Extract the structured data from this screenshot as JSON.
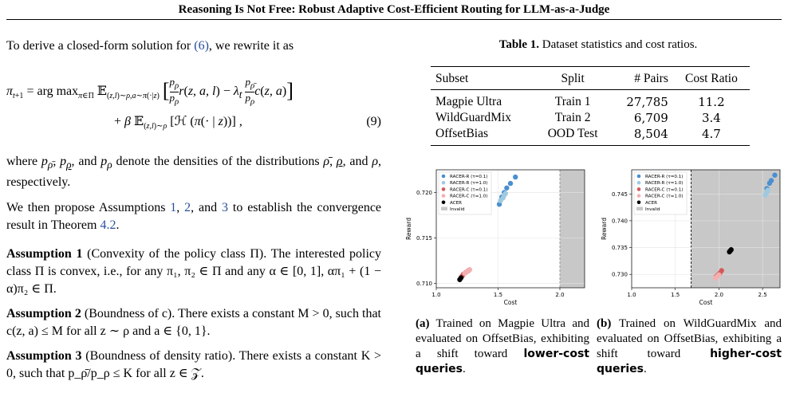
{
  "header": {
    "title": "Reasoning Is Not Free: Robust Adaptive Cost-Efficient Routing for LLM-as-a-Judge"
  },
  "left": {
    "intro": "To derive a closed-form solution for",
    "intro_ref": "(6)",
    "intro_tail": ", we rewrite it as",
    "eq_line1": "π_{t+1} = arg max_{π∈Π} 𝔼_{(z,l)∼ρ, a∼π(·|z)} [ (p_ρ / p_ρ) r(z,a,l) − λ_t (p_ρ̄ / p_ρ) c(z,a) ]",
    "eq_line2": "+ β 𝔼_{(z,l)∼ρ} [ℋ (π(· | z))],",
    "eq_number": "(9)",
    "densities_p1": "where",
    "densities_p2": "and",
    "densities_p3": "denote the densities of the distributions",
    "densities_p4": "respectively.",
    "assume_intro_a": "We then propose Assumptions",
    "assume_ref1": "1",
    "assume_ref2": "2",
    "assume_ref3": "3",
    "assume_intro_b": "to establish the convergence result in Theorem",
    "theorem_ref": "4.2",
    "a1_title": "Assumption 1",
    "a1_paren": "(Convexity of the policy class Π).",
    "a1_body": "The interested policy class Π is convex, i.e., for any π₁, π₂ ∈ Π and any α ∈ [0, 1], απ₁ + (1 − α)π₂ ∈ Π.",
    "a2_title": "Assumption 2",
    "a2_paren": "(Boundness of c).",
    "a2_body": "There exists a constant M > 0, such that c(z, a) ≤ M for all z ∼ ρ and a ∈ {0, 1}.",
    "a3_title": "Assumption 3",
    "a3_paren": "(Boundness of density ratio).",
    "a3_body": "There exists a constant K > 0, such that p_ρ̄/p_ρ ≤ K for all z ∈ 𝒵."
  },
  "table": {
    "caption_label": "Table 1.",
    "caption_text": "Dataset statistics and cost ratios.",
    "columns": [
      "Subset",
      "Split",
      "# Pairs",
      "Cost Ratio"
    ],
    "rows": [
      [
        "Magpie Ultra",
        "Train 1",
        "27,785",
        "11.2"
      ],
      [
        "WildGuardMix",
        "Train 2",
        "6,709",
        "3.4"
      ],
      [
        "OffsetBias",
        "OOD Test",
        "8,504",
        "4.7"
      ]
    ]
  },
  "legend": {
    "entries": [
      "RACER-R (τ=0.1)",
      "RACER-R (τ=1.0)",
      "RACER-C (τ=0.1)",
      "RACER-C (τ=1.0)",
      "ACER",
      "Invalid"
    ],
    "colors": [
      "#4a8fd0",
      "#9ecae1",
      "#d6575a",
      "#f4b0b0",
      "#000000",
      "#c8c8c8"
    ]
  },
  "captions": {
    "a_label": "(a)",
    "a_text1": "Trained on Magpie Ultra and evaluated on OffsetBias, exhibiting a shift toward",
    "a_bold": "lower-cost queries",
    "b_label": "(b)",
    "b_text1": "Trained on WildGuardMix and evaluated on OffsetBias, exhibiting a shift toward",
    "b_bold": "higher-cost queries",
    "end": "."
  },
  "chart_data": [
    {
      "type": "scatter",
      "xlabel": "Cost",
      "ylabel": "Reward",
      "xlim": [
        1.0,
        2.2
      ],
      "ylim": [
        0.7095,
        0.7225
      ],
      "xticks": [
        "1.0",
        "1.5",
        "2.0"
      ],
      "xtick_values": [
        1.0,
        1.5,
        2.0
      ],
      "yticks": [
        "0.710",
        "0.715",
        "0.720"
      ],
      "ytick_values": [
        0.71,
        0.715,
        0.72
      ],
      "invalid_from": 2.0,
      "grid": true,
      "legend_placement": "top-left",
      "series": [
        {
          "name": "RACER-R (τ=0.1)",
          "color": "#4a8fd0",
          "points": [
            [
              1.53,
              0.7195
            ],
            [
              1.55,
              0.72
            ],
            [
              1.57,
              0.7205
            ],
            [
              1.6,
              0.721
            ],
            [
              1.64,
              0.7217
            ],
            [
              1.51,
              0.7187
            ]
          ]
        },
        {
          "name": "RACER-R (τ=1.0)",
          "color": "#9ecae1",
          "points": [
            [
              1.52,
              0.7191
            ],
            [
              1.54,
              0.7194
            ],
            [
              1.55,
              0.7197
            ],
            [
              1.56,
              0.7199
            ]
          ]
        },
        {
          "name": "RACER-C (τ=0.1)",
          "color": "#d6575a",
          "points": [
            [
              1.21,
              0.7108
            ],
            [
              1.22,
              0.711
            ],
            [
              1.24,
              0.7112
            ],
            [
              1.26,
              0.7114
            ]
          ]
        },
        {
          "name": "RACER-C (τ=1.0)",
          "color": "#f4b0b0",
          "points": [
            [
              1.23,
              0.7111
            ],
            [
              1.25,
              0.7113
            ],
            [
              1.27,
              0.7115
            ]
          ]
        },
        {
          "name": "ACER",
          "color": "#000000",
          "points": [
            [
              1.19,
              0.7104
            ],
            [
              1.2,
              0.7106
            ]
          ]
        }
      ]
    },
    {
      "type": "scatter",
      "xlabel": "Cost",
      "ylabel": "Reward",
      "xlim": [
        1.0,
        2.7
      ],
      "ylim": [
        0.7275,
        0.7495
      ],
      "xticks": [
        "1.0",
        "1.5",
        "2.0",
        "2.5"
      ],
      "xtick_values": [
        1.0,
        1.5,
        2.0,
        2.5
      ],
      "yticks": [
        "0.730",
        "0.735",
        "0.740",
        "0.745"
      ],
      "ytick_values": [
        0.73,
        0.735,
        0.74,
        0.745
      ],
      "invalid_from": 1.68,
      "grid": true,
      "legend_placement": "top-left",
      "series": [
        {
          "name": "RACER-R (τ=0.1)",
          "color": "#4a8fd0",
          "points": [
            [
              2.55,
              0.746
            ],
            [
              2.58,
              0.747
            ],
            [
              2.6,
              0.7475
            ],
            [
              2.64,
              0.7485
            ]
          ]
        },
        {
          "name": "RACER-R (τ=1.0)",
          "color": "#9ecae1",
          "points": [
            [
              2.53,
              0.7448
            ],
            [
              2.55,
              0.7453
            ],
            [
              2.56,
              0.7457
            ]
          ]
        },
        {
          "name": "RACER-C (τ=0.1)",
          "color": "#d6575a",
          "points": [
            [
              1.97,
              0.7296
            ],
            [
              1.99,
              0.7299
            ],
            [
              2.01,
              0.7302
            ],
            [
              2.03,
              0.7307
            ]
          ]
        },
        {
          "name": "RACER-C (τ=1.0)",
          "color": "#f4b0b0",
          "points": [
            [
              1.96,
              0.7293
            ],
            [
              1.98,
              0.7296
            ],
            [
              2.0,
              0.7299
            ]
          ]
        },
        {
          "name": "ACER",
          "color": "#000000",
          "points": [
            [
              2.12,
              0.7342
            ],
            [
              2.14,
              0.7346
            ],
            [
              2.13,
              0.7344
            ]
          ]
        }
      ]
    }
  ]
}
